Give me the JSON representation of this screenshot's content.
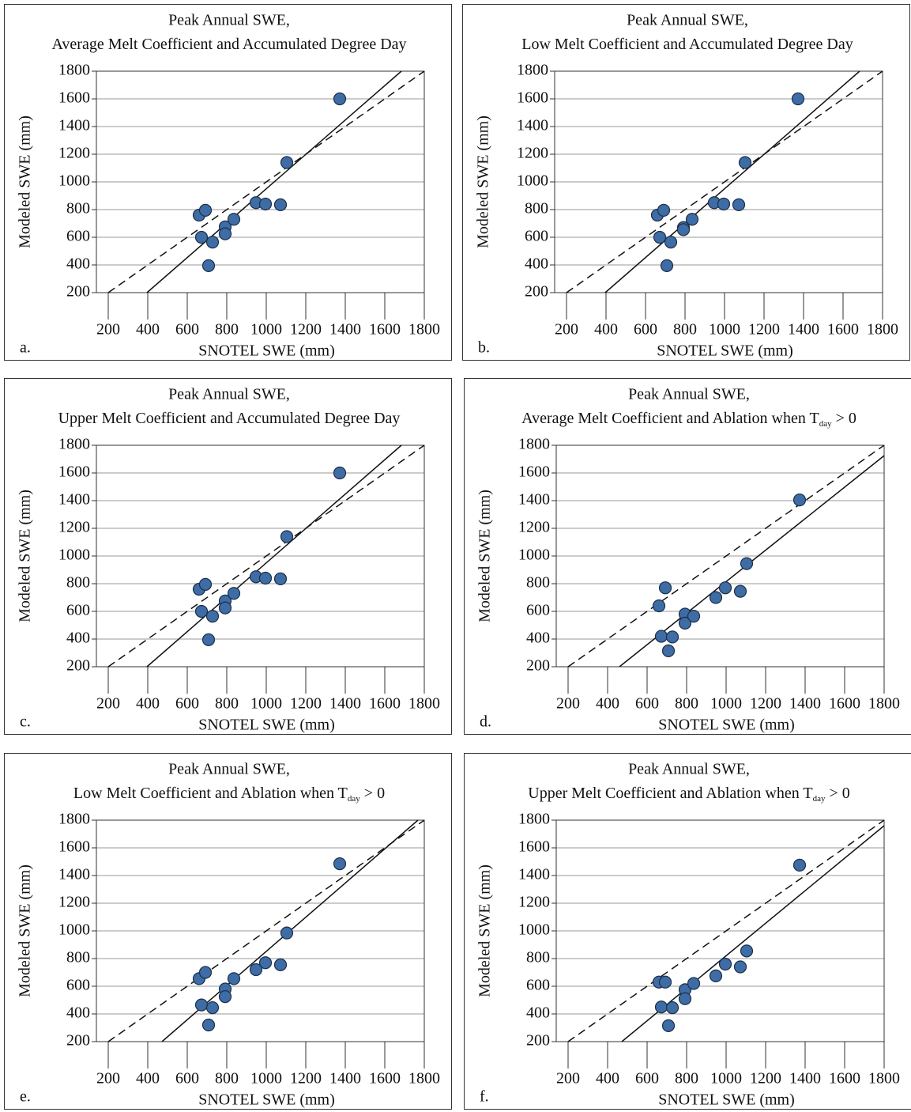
{
  "chart_data": [
    {
      "type": "scatter",
      "title": "Peak Annual SWE,",
      "subtitle": [
        "Average Melt Coefficient and Accumulated Degree Day"
      ],
      "panel_label": "a.",
      "x_label": "SNOTEL SWE (mm)",
      "y_label": "Modeled SWE (mm)",
      "color": "#3e6ca5",
      "x": [
        660,
        692,
        672,
        728,
        708,
        792,
        792,
        836,
        948,
        996,
        1072,
        1104,
        1372
      ],
      "values": [
        760,
        795,
        600,
        565,
        395,
        675,
        625,
        730,
        850,
        840,
        835,
        1140,
        1600
      ],
      "lines": [
        {
          "style": "dashed",
          "x": [
            200,
            1800
          ],
          "values": [
            200,
            1800
          ]
        },
        {
          "style": "solid",
          "x": [
            396,
            1684
          ],
          "values": [
            200,
            1800
          ]
        }
      ],
      "xlim": [
        140,
        1800
      ],
      "ylim": [
        200,
        1800
      ],
      "xticks": [
        200,
        400,
        600,
        800,
        1000,
        1200,
        1400,
        1600,
        1800
      ],
      "yticks": [
        200,
        400,
        600,
        800,
        1000,
        1200,
        1400,
        1600,
        1800
      ],
      "grid": true
    },
    {
      "type": "scatter",
      "title": "Peak Annual SWE,",
      "subtitle": [
        "Low Melt Coefficient and Accumulated Degree Day"
      ],
      "panel_label": "b.",
      "x_label": "SNOTEL SWE (mm)",
      "y_label": "Modeled SWE (mm)",
      "color": "#3e6ca5",
      "x": [
        660,
        692,
        672,
        728,
        708,
        792,
        792,
        836,
        948,
        996,
        1072,
        1104,
        1372
      ],
      "values": [
        760,
        795,
        600,
        565,
        395,
        670,
        655,
        730,
        850,
        840,
        835,
        1140,
        1600
      ],
      "lines": [
        {
          "style": "dashed",
          "x": [
            200,
            1800
          ],
          "values": [
            200,
            1800
          ]
        },
        {
          "style": "solid",
          "x": [
            396,
            1684
          ],
          "values": [
            200,
            1800
          ]
        }
      ],
      "xlim": [
        140,
        1800
      ],
      "ylim": [
        200,
        1800
      ],
      "xticks": [
        200,
        400,
        600,
        800,
        1000,
        1200,
        1400,
        1600,
        1800
      ],
      "yticks": [
        200,
        400,
        600,
        800,
        1000,
        1200,
        1400,
        1600,
        1800
      ],
      "grid": true
    },
    {
      "type": "scatter",
      "title": "Peak Annual SWE,",
      "subtitle": [
        "Upper Melt Coefficient and Accumulated Degree Day"
      ],
      "panel_label": "c.",
      "x_label": "SNOTEL SWE (mm)",
      "y_label": "Modeled SWE (mm)",
      "color": "#3e6ca5",
      "x": [
        660,
        692,
        672,
        728,
        708,
        792,
        792,
        836,
        948,
        996,
        1072,
        1104,
        1372
      ],
      "values": [
        760,
        795,
        600,
        565,
        395,
        675,
        625,
        730,
        850,
        840,
        835,
        1140,
        1600
      ],
      "lines": [
        {
          "style": "dashed",
          "x": [
            200,
            1800
          ],
          "values": [
            200,
            1800
          ]
        },
        {
          "style": "solid",
          "x": [
            396,
            1684
          ],
          "values": [
            200,
            1800
          ]
        }
      ],
      "xlim": [
        140,
        1800
      ],
      "ylim": [
        200,
        1800
      ],
      "xticks": [
        200,
        400,
        600,
        800,
        1000,
        1200,
        1400,
        1600,
        1800
      ],
      "yticks": [
        200,
        400,
        600,
        800,
        1000,
        1200,
        1400,
        1600,
        1800
      ],
      "grid": true
    },
    {
      "type": "scatter",
      "title": "Peak Annual SWE,",
      "subtitle": [
        "Average Melt Coefficient and Ablation when T",
        "day",
        " > 0"
      ],
      "subtitle_subscript": [
        1
      ],
      "panel_label": "d.",
      "x_label": "SNOTEL SWE (mm)",
      "y_label": "Modeled SWE (mm)",
      "color": "#3e6ca5",
      "x": [
        660,
        692,
        672,
        728,
        708,
        792,
        792,
        836,
        948,
        996,
        1072,
        1104,
        1372
      ],
      "values": [
        640,
        770,
        420,
        415,
        315,
        580,
        515,
        565,
        700,
        770,
        745,
        945,
        1405
      ],
      "lines": [
        {
          "style": "dashed",
          "x": [
            200,
            1800
          ],
          "values": [
            200,
            1800
          ]
        },
        {
          "style": "solid",
          "x": [
            460,
            1800
          ],
          "values": [
            200,
            1725
          ]
        }
      ],
      "xlim": [
        140,
        1800
      ],
      "ylim": [
        200,
        1800
      ],
      "xticks": [
        200,
        400,
        600,
        800,
        1000,
        1200,
        1400,
        1600,
        1800
      ],
      "yticks": [
        200,
        400,
        600,
        800,
        1000,
        1200,
        1400,
        1600,
        1800
      ],
      "grid": true
    },
    {
      "type": "scatter",
      "title": "Peak Annual SWE,",
      "subtitle": [
        "Low Melt Coefficient and Ablation when T",
        "day",
        " > 0"
      ],
      "subtitle_subscript": [
        1
      ],
      "panel_label": "e.",
      "x_label": "SNOTEL SWE (mm)",
      "y_label": "Modeled SWE (mm)",
      "color": "#3e6ca5",
      "x": [
        660,
        692,
        672,
        728,
        708,
        792,
        792,
        836,
        948,
        996,
        1072,
        1104,
        1372
      ],
      "values": [
        655,
        700,
        465,
        445,
        320,
        580,
        525,
        655,
        720,
        770,
        755,
        985,
        1485
      ],
      "lines": [
        {
          "style": "dashed",
          "x": [
            200,
            1800
          ],
          "values": [
            200,
            1800
          ]
        },
        {
          "style": "solid",
          "x": [
            472,
            1768
          ],
          "values": [
            200,
            1800
          ]
        }
      ],
      "xlim": [
        140,
        1800
      ],
      "ylim": [
        200,
        1800
      ],
      "xticks": [
        200,
        400,
        600,
        800,
        1000,
        1200,
        1400,
        1600,
        1800
      ],
      "yticks": [
        200,
        400,
        600,
        800,
        1000,
        1200,
        1400,
        1600,
        1800
      ],
      "grid": true
    },
    {
      "type": "scatter",
      "title": "Peak Annual SWE,",
      "subtitle": [
        "Upper Melt Coefficient and Ablation when T",
        "day",
        " > 0"
      ],
      "subtitle_subscript": [
        1
      ],
      "panel_label": "f.",
      "x_label": "SNOTEL SWE (mm)",
      "y_label": "Modeled SWE (mm)",
      "color": "#3e6ca5",
      "x": [
        660,
        692,
        672,
        728,
        708,
        792,
        792,
        836,
        948,
        996,
        1072,
        1104,
        1372
      ],
      "values": [
        630,
        630,
        450,
        445,
        315,
        575,
        510,
        620,
        675,
        760,
        740,
        855,
        1475
      ],
      "lines": [
        {
          "style": "dashed",
          "x": [
            200,
            1800
          ],
          "values": [
            200,
            1800
          ]
        },
        {
          "style": "solid",
          "x": [
            472,
            1800
          ],
          "values": [
            200,
            1760
          ]
        }
      ],
      "xlim": [
        140,
        1800
      ],
      "ylim": [
        200,
        1800
      ],
      "xticks": [
        200,
        400,
        600,
        800,
        1000,
        1200,
        1400,
        1600,
        1800
      ],
      "yticks": [
        200,
        400,
        600,
        800,
        1000,
        1200,
        1400,
        1600,
        1800
      ],
      "grid": true
    }
  ]
}
